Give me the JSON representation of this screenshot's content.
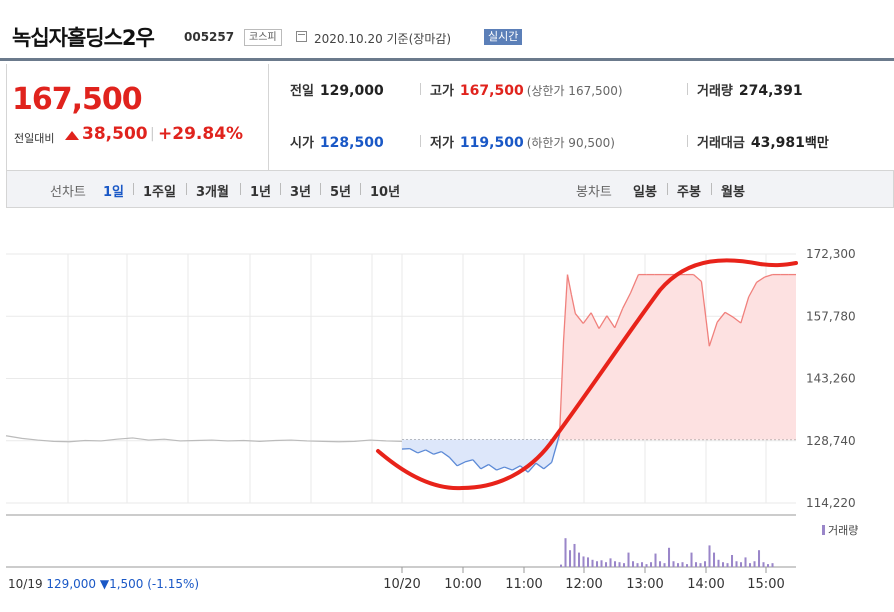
{
  "header": {
    "name": "녹십자홀딩스2우",
    "code": "005257",
    "market": "코스피",
    "date": "2020.10.20 기준(장마감)",
    "realtime": "실시간"
  },
  "summary": {
    "price": "167,500",
    "change_label": "전일대비",
    "change_value": "38,500",
    "change_rate": "+29.84%",
    "prev_close_label": "전일",
    "prev_close": "129,000",
    "high_label": "고가",
    "high": "167,500",
    "upper_limit": "(상한가 167,500)",
    "volume_label": "거래량",
    "volume": "274,391",
    "open_label": "시가",
    "open": "128,500",
    "low_label": "저가",
    "low": "119,500",
    "lower_limit": "(하한가 90,500)",
    "amount_label": "거래대금",
    "amount": "43,981",
    "amount_unit": "백만"
  },
  "tabs": {
    "line_label": "선차트",
    "periods": [
      "1일",
      "1주일",
      "3개월",
      "1년",
      "3년",
      "5년",
      "10년"
    ],
    "candle_label": "봉차트",
    "candles": [
      "일봉",
      "주봉",
      "월봉"
    ]
  },
  "colors": {
    "up": "#e0231d",
    "down": "#1a58c6",
    "annotation": "#e8231a"
  },
  "chart_data": {
    "type": "line",
    "y_ticks": [
      "172,300",
      "157,780",
      "143,260",
      "128,740",
      "114,220"
    ],
    "ylim": [
      114220,
      172300
    ],
    "x_ticks": [
      "10/20",
      "10:00",
      "11:00",
      "12:00",
      "13:00",
      "14:00",
      "15:00"
    ],
    "xlim": [
      0,
      1
    ],
    "baseline": 129000,
    "volume_label": "거래량",
    "prev_day": {
      "label": "10/19 129,000 ▼1,500 (-1.15%)",
      "x": [
        0.0,
        0.04,
        0.08,
        0.12,
        0.16,
        0.2,
        0.24,
        0.28,
        0.32,
        0.36,
        0.4,
        0.44,
        0.48,
        0.52,
        0.56,
        0.6,
        0.64,
        0.68,
        0.72,
        0.76,
        0.8,
        0.84,
        0.88,
        0.92,
        0.96,
        1.0
      ],
      "y": [
        129900,
        129300,
        128900,
        128600,
        128500,
        128800,
        128700,
        129100,
        129400,
        128900,
        129100,
        128700,
        128800,
        128900,
        128700,
        128800,
        128600,
        128800,
        128900,
        128700,
        128600,
        128500,
        128600,
        128900,
        128700,
        128600
      ]
    },
    "today": {
      "x": [
        0.0,
        0.02,
        0.04,
        0.06,
        0.08,
        0.1,
        0.12,
        0.14,
        0.16,
        0.18,
        0.2,
        0.22,
        0.24,
        0.26,
        0.28,
        0.3,
        0.32,
        0.34,
        0.36,
        0.38,
        0.4,
        0.41,
        0.42,
        0.43,
        0.44,
        0.46,
        0.48,
        0.5,
        0.52,
        0.54,
        0.56,
        0.58,
        0.6,
        0.62,
        0.64,
        0.66,
        0.68,
        0.7,
        0.72,
        0.74,
        0.76,
        0.78,
        0.8,
        0.82,
        0.84,
        0.86,
        0.88,
        0.9,
        0.92,
        0.94,
        0.96,
        0.98,
        1.0
      ],
      "y": [
        126800,
        126900,
        125900,
        126600,
        125600,
        126200,
        124900,
        122900,
        123800,
        124300,
        122200,
        123200,
        121900,
        122600,
        121900,
        122900,
        121400,
        123500,
        122200,
        123700,
        130300,
        152000,
        167500,
        162800,
        158400,
        156100,
        158600,
        154900,
        157900,
        155100,
        159600,
        163200,
        167500,
        167500,
        167500,
        167500,
        167500,
        167500,
        167500,
        167500,
        165900,
        150800,
        156400,
        158700,
        157600,
        156200,
        162300,
        165700,
        166900,
        167500,
        167500,
        167500,
        167500
      ]
    },
    "volume": [
      0.05,
      0.6,
      0.35,
      0.48,
      0.3,
      0.22,
      0.2,
      0.15,
      0.12,
      0.14,
      0.1,
      0.18,
      0.12,
      0.1,
      0.08,
      0.3,
      0.12,
      0.08,
      0.1,
      0.06,
      0.1,
      0.28,
      0.12,
      0.08,
      0.4,
      0.12,
      0.08,
      0.1,
      0.06,
      0.3,
      0.1,
      0.08,
      0.12,
      0.45,
      0.3,
      0.15,
      0.1,
      0.08,
      0.25,
      0.12,
      0.1,
      0.2,
      0.08,
      0.12,
      0.35,
      0.1,
      0.06,
      0.08
    ]
  }
}
